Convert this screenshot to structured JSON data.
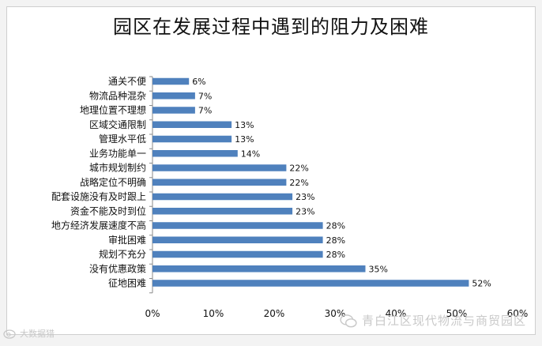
{
  "chart_data": {
    "type": "bar",
    "orientation": "horizontal",
    "title": "园区在发展过程中遇到的阻力及困难",
    "categories": [
      "通关不便",
      "物流品种混杂",
      "地理位置不理想",
      "区域交通限制",
      "管理水平低",
      "业务功能单一",
      "城市规划制约",
      "战略定位不明确",
      "配套设施没有及时跟上",
      "资金不能及时到位",
      "地方经济发展速度不高",
      "审批困难",
      "规划不充分",
      "没有优惠政策",
      "征地困难"
    ],
    "values": [
      6,
      7,
      7,
      13,
      13,
      14,
      22,
      22,
      23,
      23,
      28,
      28,
      28,
      35,
      52
    ],
    "value_labels": [
      "6%",
      "7%",
      "7%",
      "13%",
      "13%",
      "14%",
      "22%",
      "22%",
      "23%",
      "23%",
      "28%",
      "28%",
      "28%",
      "35%",
      "52%"
    ],
    "xlim": [
      0,
      60
    ],
    "xticks": [
      "0%",
      "10%",
      "20%",
      "30%",
      "40%",
      "50%",
      "60%"
    ],
    "grid": false,
    "legend": "none",
    "bar_color": "#4f81bd"
  },
  "watermarks": {
    "left": "大数据猎",
    "right": "青白江区现代物流与商贸园区"
  }
}
